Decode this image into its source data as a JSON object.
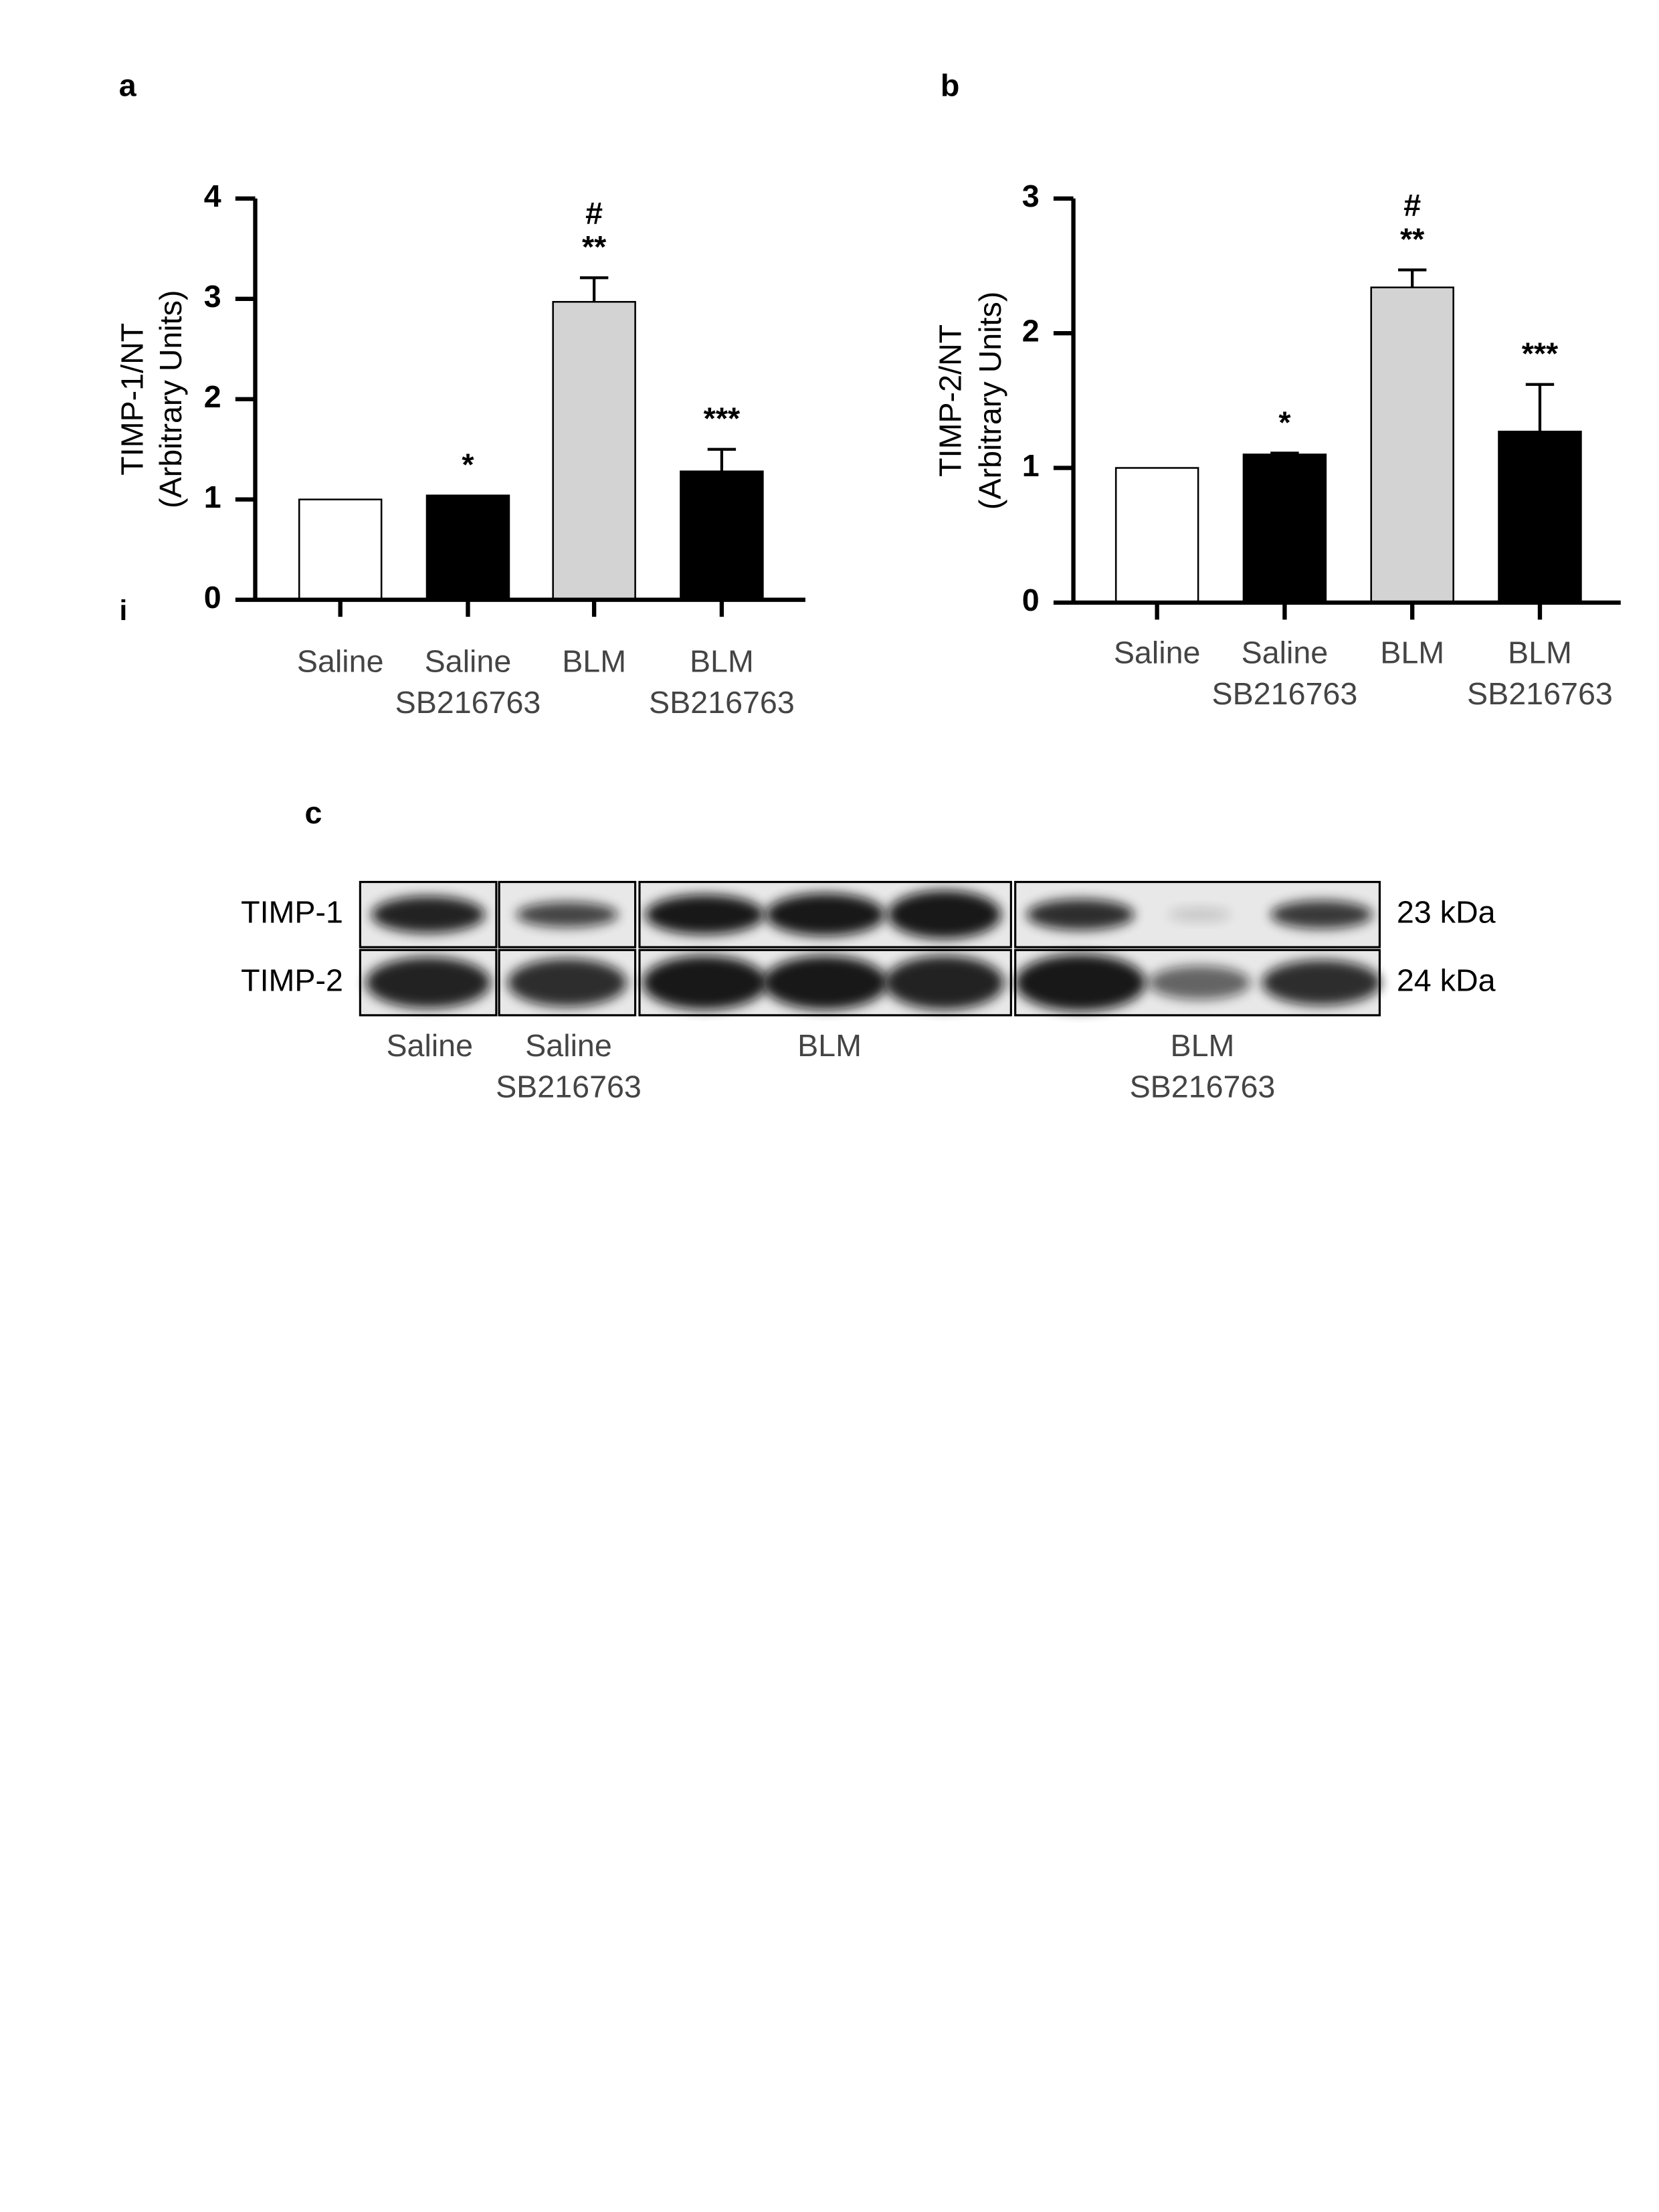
{
  "chart_data": [
    {
      "type": "bar",
      "panel": "a",
      "stray_label": "i",
      "ylabel": [
        "TIMP-1/NT",
        "(Arbitrary Units)"
      ],
      "categories": [
        [
          "Saline"
        ],
        [
          "Saline",
          "SB216763"
        ],
        [
          "BLM"
        ],
        [
          "BLM",
          "SB216763"
        ]
      ],
      "values": [
        1,
        1.04,
        2.97,
        1.28
      ],
      "errors": [
        0,
        0,
        0.24,
        0.22
      ],
      "colors": [
        "#ffffff",
        "#000000",
        "#d3d3d3",
        "#000000"
      ],
      "bar_labels": [
        [],
        [
          "*"
        ],
        [
          "#",
          "**"
        ],
        [
          "***"
        ]
      ],
      "ylim": [
        0,
        4
      ],
      "yticks": [
        0,
        1,
        2,
        3,
        4
      ]
    },
    {
      "type": "bar",
      "panel": "b",
      "ylabel": [
        "TIMP-2/NT",
        "(Arbitrary Units)"
      ],
      "categories": [
        [
          "Saline"
        ],
        [
          "Saline",
          "SB216763"
        ],
        [
          "BLM"
        ],
        [
          "BLM",
          "SB216763"
        ]
      ],
      "values": [
        1,
        1.1,
        2.34,
        1.27
      ],
      "errors": [
        0,
        0.01,
        0.13,
        0.35
      ],
      "colors": [
        "#ffffff",
        "#000000",
        "#d3d3d3",
        "#000000"
      ],
      "bar_labels": [
        [],
        [
          "*"
        ],
        [
          "#",
          "**"
        ],
        [
          "***"
        ]
      ],
      "ylim": [
        0,
        3
      ],
      "yticks": [
        0,
        1,
        2,
        3
      ]
    }
  ],
  "blot": {
    "panel": "c",
    "rows": [
      {
        "label": "TIMP-1",
        "size": "23 kDa"
      },
      {
        "label": "TIMP-2",
        "size": "24 kDa"
      }
    ],
    "groups": [
      [
        "Saline"
      ],
      [
        "Saline",
        "SB216763"
      ],
      [
        "BLM"
      ],
      [
        "BLM",
        "SB216763"
      ]
    ]
  }
}
